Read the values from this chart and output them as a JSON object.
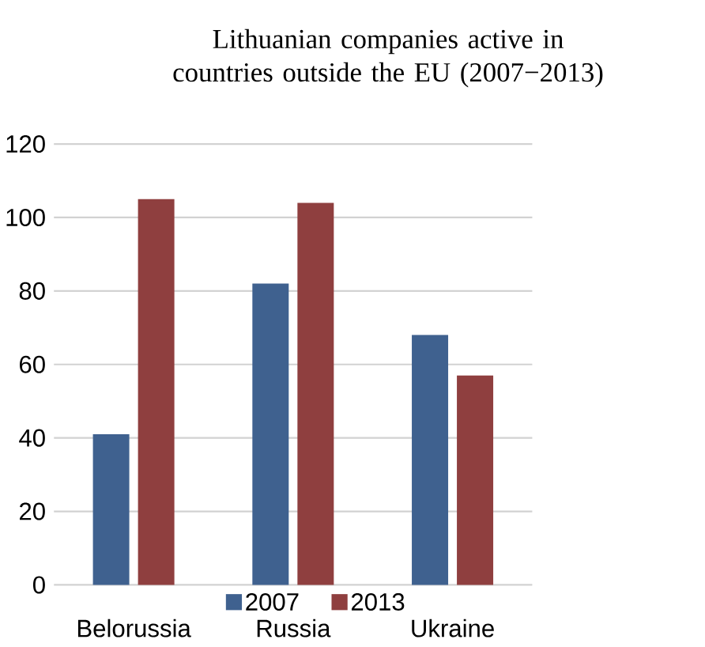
{
  "chart_data": {
    "type": "bar",
    "title": "Lithuanian companies active in countries outside the EU (2007−2013)",
    "categories": [
      "Belorussia",
      "Russia",
      "Ukraine"
    ],
    "series": [
      {
        "name": "2007",
        "color": "#3f618f",
        "values": [
          41,
          82,
          68
        ]
      },
      {
        "name": "2013",
        "color": "#8f3f3f",
        "values": [
          105,
          104,
          57
        ]
      }
    ],
    "ylim": [
      0,
      120
    ],
    "yticks": [
      0,
      20,
      40,
      60,
      80,
      100,
      120
    ],
    "grid": "y",
    "legend": "bottom"
  }
}
